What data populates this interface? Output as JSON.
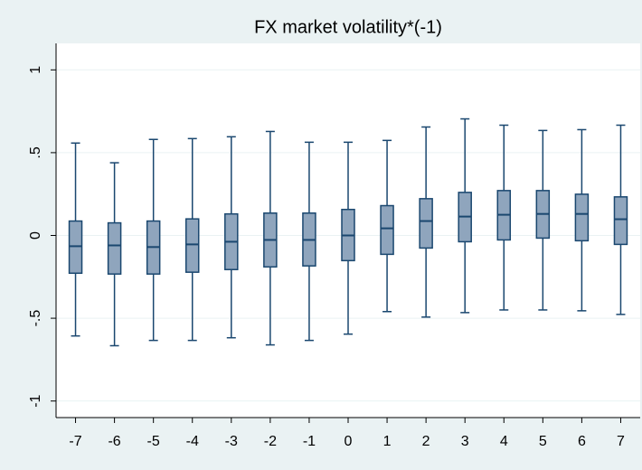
{
  "chart_data": {
    "type": "box",
    "title": "FX market volatility*(-1)",
    "categories": [
      "-7",
      "-6",
      "-5",
      "-4",
      "-3",
      "-2",
      "-1",
      "0",
      "1",
      "2",
      "3",
      "4",
      "5",
      "6",
      "7"
    ],
    "whisker_low": [
      -0.607,
      -0.666,
      -0.634,
      -0.634,
      -0.618,
      -0.661,
      -0.634,
      -0.596,
      -0.46,
      -0.493,
      -0.466,
      -0.45,
      -0.45,
      -0.455,
      -0.477
    ],
    "q1": [
      -0.228,
      -0.233,
      -0.233,
      -0.222,
      -0.206,
      -0.19,
      -0.184,
      -0.152,
      -0.114,
      -0.076,
      -0.038,
      -0.027,
      -0.016,
      -0.032,
      -0.054
    ],
    "median": [
      -0.065,
      -0.06,
      -0.07,
      -0.054,
      -0.038,
      -0.027,
      -0.027,
      0,
      0.043,
      0.087,
      0.114,
      0.125,
      0.13,
      0.13,
      0.098
    ],
    "q3": [
      0.087,
      0.076,
      0.087,
      0.1,
      0.13,
      0.135,
      0.135,
      0.157,
      0.18,
      0.222,
      0.26,
      0.271,
      0.271,
      0.249,
      0.233
    ],
    "whisker_high": [
      0.558,
      0.439,
      0.58,
      0.585,
      0.596,
      0.628,
      0.563,
      0.563,
      0.574,
      0.655,
      0.704,
      0.666,
      0.634,
      0.639,
      0.666
    ],
    "color": "#8fa5bd",
    "edge_color": "#1a476f",
    "ylim": [
      -1.1,
      1.16
    ],
    "yticks": [
      -1,
      {
        "value": -0.5,
        "label": "-.5"
      },
      0,
      {
        "value": 0.5,
        "label": ".5"
      },
      1
    ],
    "grid": true
  }
}
